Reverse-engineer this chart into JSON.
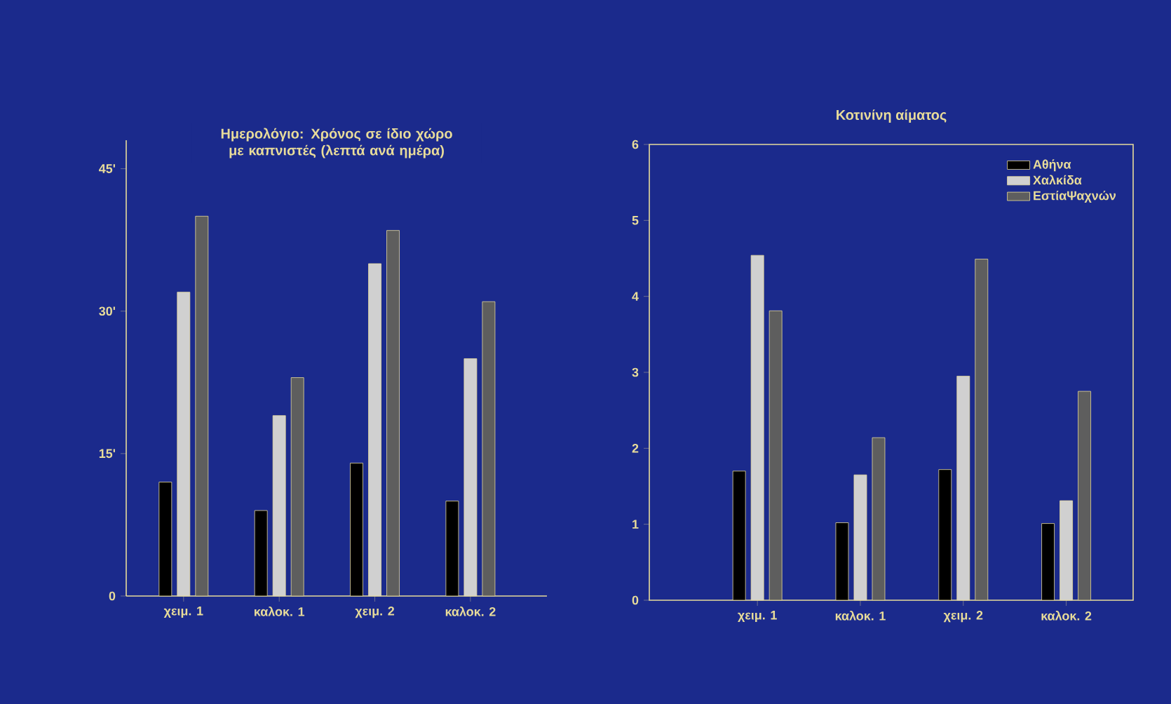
{
  "chart_data": [
    {
      "type": "bar",
      "title": "Ημερολόγιο: Χρόνος σε ίδιο χώρο με καπνιστές (λεπτά ανά ημέρα)",
      "categories": [
        "χειμ. 1",
        "καλοκ. 1",
        "χειμ. 2",
        "καλοκ. 2"
      ],
      "series": [
        {
          "color": "#000000",
          "values": [
            12,
            9,
            14,
            10
          ]
        },
        {
          "color": "#d0d0d0",
          "values": [
            32,
            19,
            35,
            25
          ]
        },
        {
          "color": "#5e5e5e",
          "values": [
            40,
            23,
            38.5,
            31
          ]
        }
      ],
      "ylim": [
        0,
        48
      ],
      "yticks": [
        0,
        {
          "value": 15,
          "label": "15'"
        },
        {
          "value": 30,
          "label": "30'"
        },
        {
          "value": 45,
          "label": "45'"
        }
      ],
      "grid": false,
      "legend": false
    },
    {
      "type": "bar",
      "title": "Κοτινίνη αίματος",
      "categories": [
        "χειμ. 1",
        "καλοκ. 1",
        "χειμ. 2",
        "καλοκ. 2"
      ],
      "series": [
        {
          "name": "Αθήνα",
          "color": "#000000",
          "values": [
            1.7,
            1.02,
            1.72,
            1.01
          ]
        },
        {
          "name": "Χαλκίδα",
          "color": "#d0d0d0",
          "values": [
            4.54,
            1.65,
            2.95,
            1.31
          ]
        },
        {
          "name": "ΕστίαΨαχνών",
          "color": "#5e5e5e",
          "values": [
            3.81,
            2.14,
            4.49,
            2.75
          ]
        }
      ],
      "ylim": [
        0,
        6
      ],
      "yticks": [
        0,
        1,
        2,
        3,
        4,
        5,
        6
      ],
      "grid": false,
      "legend": "top right"
    }
  ]
}
